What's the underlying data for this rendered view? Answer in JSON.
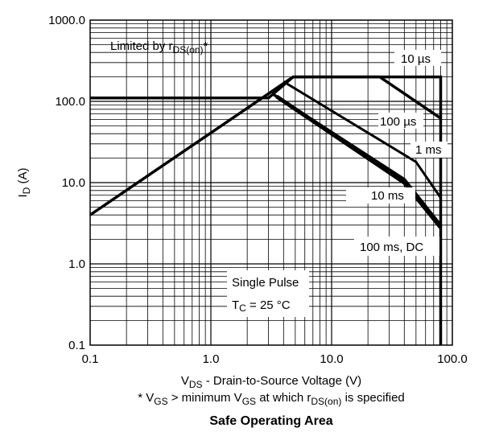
{
  "chart_data": {
    "type": "line",
    "title": "Safe Operating Area",
    "xlabel": {
      "main": "V",
      "sub": "DS",
      "rest": " - Drain-to-Source Voltage (V)"
    },
    "ylabel": {
      "main": "I",
      "sub": "D",
      "rest": " (A)"
    },
    "footnote": {
      "p1": "* V",
      "s1": "GS",
      "p2": " > minimum V",
      "s2": "GS",
      "p3": " at which r",
      "s3": "DS(on)",
      "p4": " is specified"
    },
    "xscale": "log",
    "yscale": "log",
    "xlim": [
      0.1,
      100
    ],
    "ylim": [
      0.1,
      1000
    ],
    "grid": true,
    "xticks": [
      "0.1",
      "1.0",
      "10.0",
      "100.0"
    ],
    "yticks": [
      "0.1",
      "1.0",
      "10.0",
      "100.0",
      "1000.0"
    ],
    "annotations": {
      "limited": {
        "main": "Limited by r",
        "sub": "DS(on)",
        "rest": "*"
      },
      "single_pulse": "Single Pulse",
      "tc": {
        "main": "T",
        "sub": "C",
        "rest": " = 25 °C"
      }
    },
    "series": [
      {
        "name": "Limited by rDS(on)*",
        "width": 3.5,
        "x": [
          0.1,
          4.8
        ],
        "y": [
          4,
          200
        ]
      },
      {
        "name": "10 µs",
        "width": 3.5,
        "x": [
          0.1,
          3.0,
          4.8,
          80,
          80
        ],
        "y": [
          110,
          110,
          200,
          200,
          0.1
        ]
      },
      {
        "name": "100 µs",
        "width": 3.5,
        "x": [
          4.8,
          25,
          80
        ],
        "y": [
          200,
          200,
          62
        ]
      },
      {
        "name": "1 ms",
        "width": 3,
        "x": [
          4.0,
          50,
          80
        ],
        "y": [
          175,
          18,
          6.5
        ]
      },
      {
        "name": "10 ms",
        "width": 3.5,
        "x": [
          3.2,
          40,
          80
        ],
        "y": [
          125,
          11,
          3.0
        ]
      },
      {
        "name": "100 ms, DC",
        "width": 5,
        "x": [
          3.5,
          40,
          80
        ],
        "y": [
          115,
          10,
          2.8
        ]
      }
    ],
    "series_labels": [
      "10 µs",
      "100 µs",
      "1 ms",
      "10 ms",
      "100 ms, DC"
    ]
  }
}
